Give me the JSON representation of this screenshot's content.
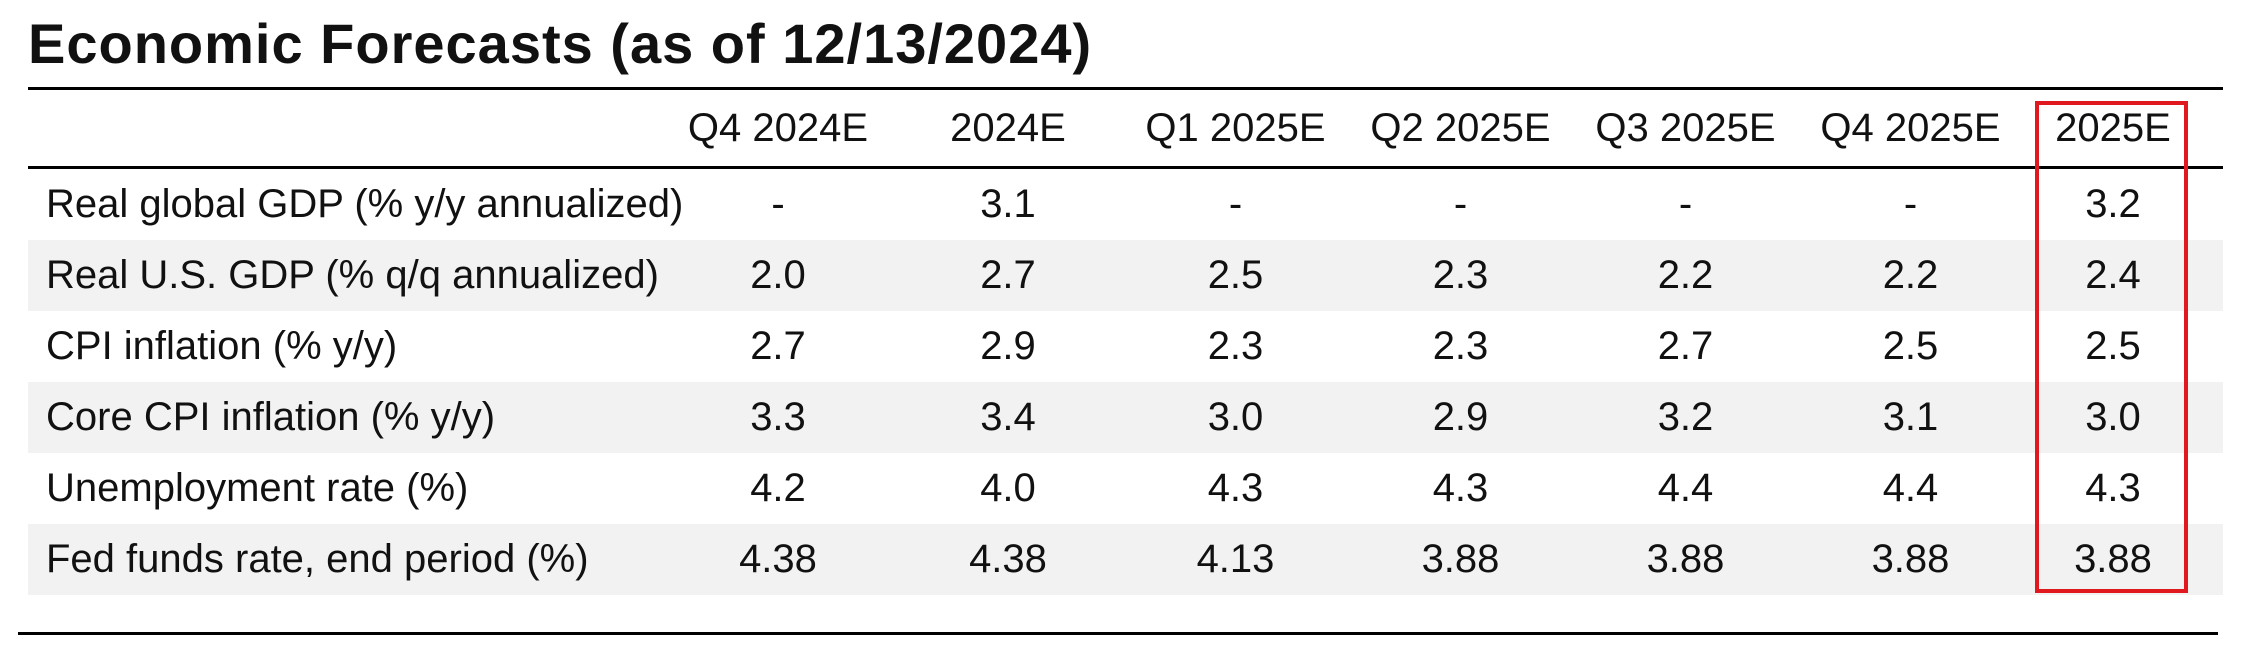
{
  "title": "Economic Forecasts (as of 12/13/2024)",
  "columns": [
    "Q4 2024E",
    "2024E",
    "Q1 2025E",
    "Q2 2025E",
    "Q3 2025E",
    "Q4 2025E",
    "2025E"
  ],
  "highlighted_column": "2025E",
  "highlight_color": "#e0191f",
  "rows": [
    {
      "label": "Real global GDP (% y/y annualized)",
      "values": [
        "-",
        "3.1",
        "-",
        "-",
        "-",
        "-",
        "3.2"
      ]
    },
    {
      "label": "Real U.S. GDP (% q/q annualized)",
      "values": [
        "2.0",
        "2.7",
        "2.5",
        "2.3",
        "2.2",
        "2.2",
        "2.4"
      ]
    },
    {
      "label": "CPI inflation (% y/y)",
      "values": [
        "2.7",
        "2.9",
        "2.3",
        "2.3",
        "2.7",
        "2.5",
        "2.5"
      ]
    },
    {
      "label": "Core CPI inflation (% y/y)",
      "values": [
        "3.3",
        "3.4",
        "3.0",
        "2.9",
        "3.2",
        "3.1",
        "3.0"
      ]
    },
    {
      "label": "Unemployment rate (%)",
      "values": [
        "4.2",
        "4.0",
        "4.3",
        "4.3",
        "4.4",
        "4.4",
        "4.3"
      ]
    },
    {
      "label": "Fed funds rate, end period (%)",
      "values": [
        "4.38",
        "4.38",
        "4.13",
        "3.88",
        "3.88",
        "3.88",
        "3.88"
      ]
    }
  ]
}
